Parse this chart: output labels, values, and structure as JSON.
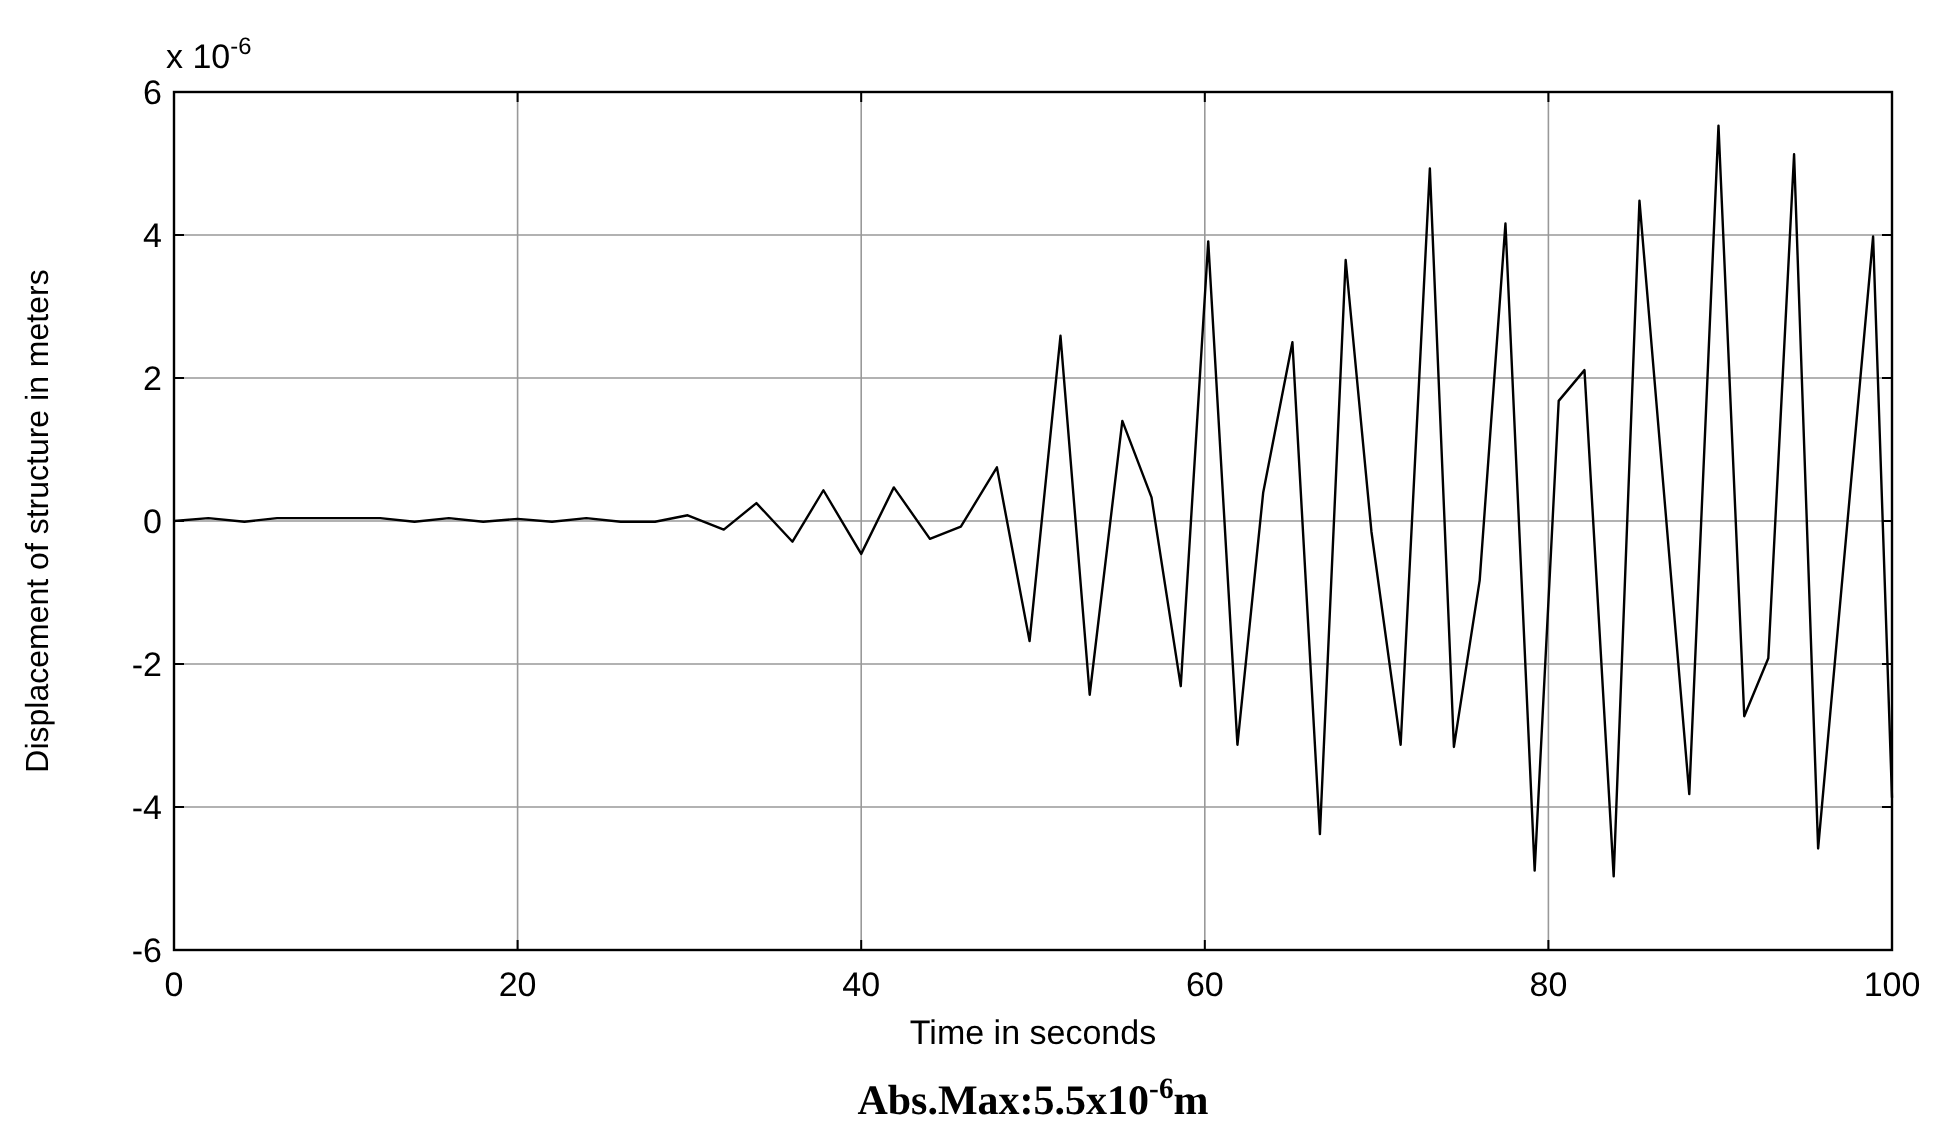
{
  "chart_data": {
    "type": "line",
    "xlabel": "Time in seconds",
    "ylabel": "Displacement of structure in meters",
    "annotations": [
      "x 10$^{-6}$",
      "Abs.Max:5.5x10$^{-6}$m"
    ],
    "x": [
      0,
      2,
      4.1,
      6,
      12,
      14,
      16,
      18,
      20,
      22,
      24,
      26,
      28,
      29.9,
      32,
      33.9,
      36,
      37.8,
      40,
      41.9,
      44,
      45.8,
      47.9,
      49.8,
      51.6,
      53.3,
      55.2,
      56.9,
      58.6,
      60.2,
      61.9,
      63.4,
      65.1,
      66.7,
      68.2,
      69.7,
      71.4,
      73.1,
      74.5,
      76,
      77.5,
      79.2,
      80.6,
      82.1,
      83.8,
      85.3,
      88.2,
      89.9,
      91.4,
      92.8,
      94.3,
      95.7,
      98.9,
      100
    ],
    "series": [
      {
        "color": "#000000",
        "values": [
          0,
          0.04,
          -0.01,
          0.04,
          0.04,
          -0.01,
          0.04,
          -0.01,
          0.03,
          -0.01,
          0.04,
          -0.01,
          -0.01,
          0.08,
          -0.12,
          0.25,
          -0.29,
          0.43,
          -0.46,
          0.47,
          -0.25,
          -0.08,
          0.75,
          -1.68,
          2.59,
          -2.43,
          1.4,
          0.33,
          -2.31,
          3.91,
          -3.13,
          0.4,
          2.5,
          -4.38,
          3.65,
          -0.15,
          -3.13,
          4.93,
          -3.16,
          -0.83,
          4.16,
          -4.89,
          1.68,
          2.11,
          -4.97,
          4.48,
          -3.82,
          5.53,
          -2.73,
          -1.92,
          5.13,
          -4.58,
          3.98,
          -3.87
        ]
      }
    ],
    "xlim": [
      0,
      100
    ],
    "xticks": [
      0,
      20,
      40,
      60,
      80,
      100
    ],
    "ylim": [
      -6,
      6
    ],
    "yticks": [
      -6,
      -4,
      -2,
      0,
      2,
      4,
      6
    ],
    "grid": true,
    "marker": "none",
    "line_style": "solid"
  }
}
